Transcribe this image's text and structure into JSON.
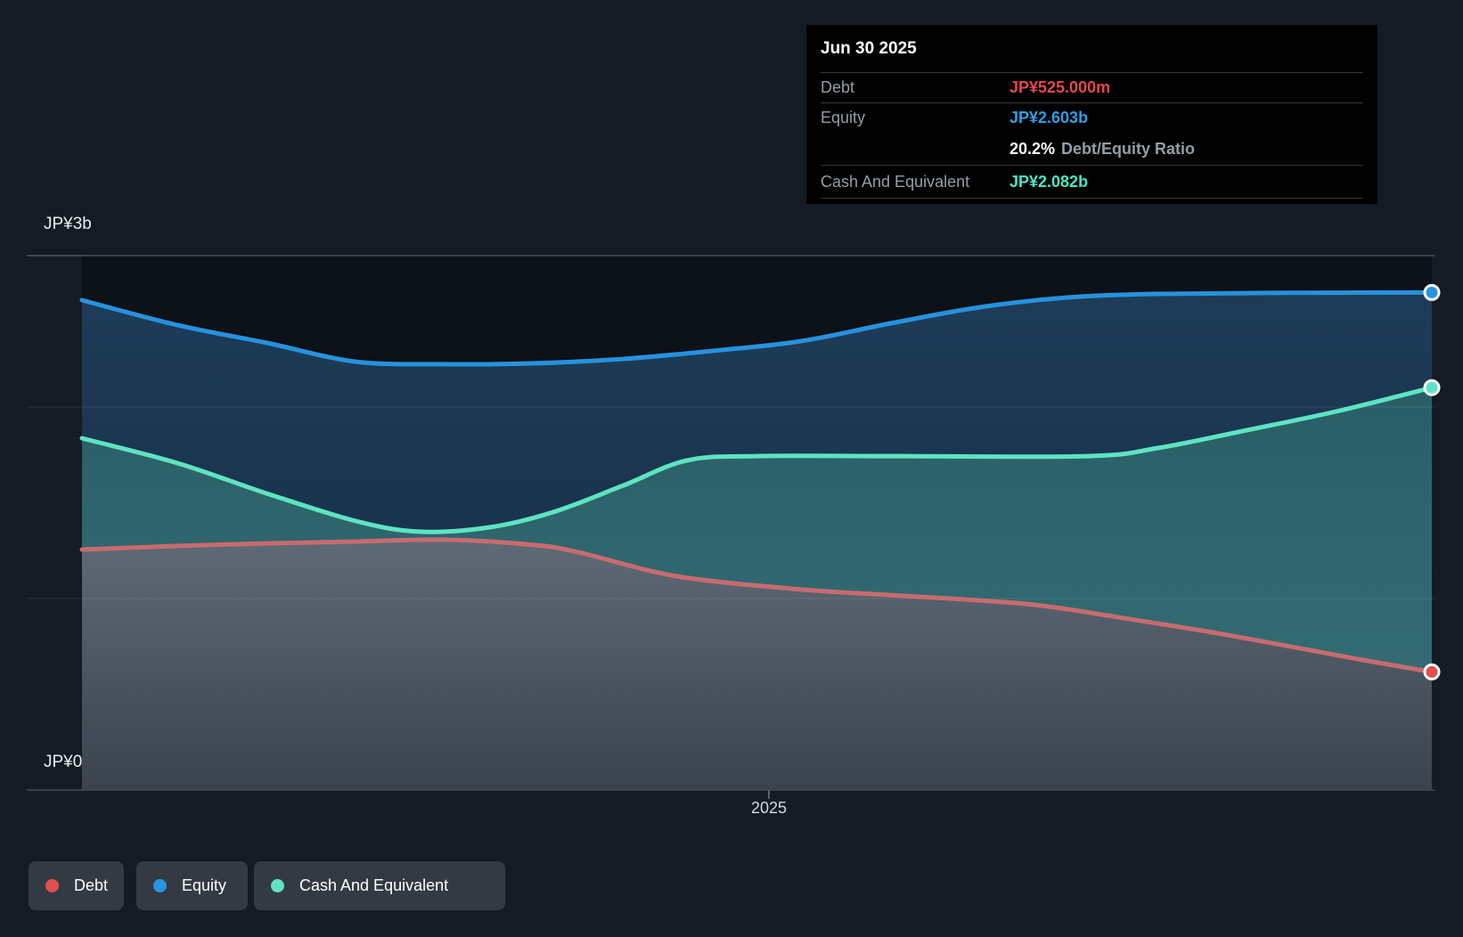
{
  "page": {
    "background": "#151b24"
  },
  "tooltip": {
    "title": "Jun 30 2025",
    "debt_label": "Debt",
    "debt_value": "JP¥525.000m",
    "debt_color": "#e5484d",
    "equity_label": "Equity",
    "equity_value": "JP¥2.603b",
    "equity_color": "#2e9fe6",
    "ratio_value": "20.2%",
    "ratio_label": "Debt/Equity Ratio",
    "cash_label": "Cash And Equivalent",
    "cash_value": "JP¥2.082b",
    "cash_color": "#49e6c3"
  },
  "y_axis": {
    "top_label": "JP¥3b",
    "bottom_label": "JP¥0"
  },
  "x_axis": {
    "tick_label": "2025"
  },
  "legend": [
    {
      "label": "Debt",
      "color": "#e0504f"
    },
    {
      "label": "Equity",
      "color": "#2994e0"
    },
    {
      "label": "Cash And Equivalent",
      "color": "#5fe3c4"
    }
  ],
  "chart_data": {
    "type": "area",
    "title": "Debt to Equity history",
    "unit": "JP¥ billions",
    "ylim": [
      0,
      3
    ],
    "y_tick_labels": [
      "JP¥3b",
      "JP¥0"
    ],
    "x_tick_labels": [
      "2025"
    ],
    "grid": true,
    "legend_position": "bottom-left",
    "latest": {
      "date": "Jun 30 2025",
      "debt": 0.525,
      "equity": 2.603,
      "cash_and_equivalent": 2.082,
      "debt_equity_ratio_pct": 20.2
    },
    "series": [
      {
        "name": "Equity",
        "line_color": "#2692dd",
        "marker_color": "#2994e0",
        "fill_top": "#1e3c58",
        "fill_bottom": "#152a41",
        "points": [
          [
            0.0,
            2.561
          ],
          [
            0.071,
            2.424
          ],
          [
            0.137,
            2.327
          ],
          [
            0.203,
            2.224
          ],
          [
            0.269,
            2.21
          ],
          [
            0.335,
            2.215
          ],
          [
            0.401,
            2.239
          ],
          [
            0.467,
            2.283
          ],
          [
            0.533,
            2.337
          ],
          [
            0.599,
            2.434
          ],
          [
            0.665,
            2.522
          ],
          [
            0.731,
            2.576
          ],
          [
            0.797,
            2.595
          ],
          [
            0.896,
            2.601
          ],
          [
            1.0,
            2.603
          ]
        ]
      },
      {
        "name": "Cash And Equivalent",
        "line_color": "#5ee3c3",
        "marker_color": "#5fe3c4",
        "fill_top": "#2a5e66",
        "fill_bottom": "#377179",
        "points": [
          [
            0.0,
            1.805
          ],
          [
            0.071,
            1.668
          ],
          [
            0.137,
            1.502
          ],
          [
            0.203,
            1.351
          ],
          [
            0.25,
            1.293
          ],
          [
            0.302,
            1.317
          ],
          [
            0.349,
            1.4
          ],
          [
            0.401,
            1.546
          ],
          [
            0.448,
            1.683
          ],
          [
            0.5,
            1.707
          ],
          [
            0.599,
            1.707
          ],
          [
            0.745,
            1.707
          ],
          [
            0.797,
            1.751
          ],
          [
            0.863,
            1.849
          ],
          [
            0.929,
            1.951
          ],
          [
            1.0,
            2.082
          ]
        ]
      },
      {
        "name": "Debt",
        "line_color": "#c76b6f",
        "marker_color": "#e0504f",
        "fill_top": "#5e6a76",
        "fill_bottom": "#3a434e",
        "points": [
          [
            0.0,
            1.195
          ],
          [
            0.071,
            1.215
          ],
          [
            0.137,
            1.229
          ],
          [
            0.203,
            1.239
          ],
          [
            0.269,
            1.249
          ],
          [
            0.335,
            1.22
          ],
          [
            0.368,
            1.18
          ],
          [
            0.441,
            1.049
          ],
          [
            0.533,
            0.976
          ],
          [
            0.599,
            0.946
          ],
          [
            0.698,
            0.898
          ],
          [
            0.764,
            0.829
          ],
          [
            0.83,
            0.751
          ],
          [
            0.896,
            0.663
          ],
          [
            0.949,
            0.59
          ],
          [
            1.0,
            0.525
          ]
        ]
      }
    ]
  }
}
